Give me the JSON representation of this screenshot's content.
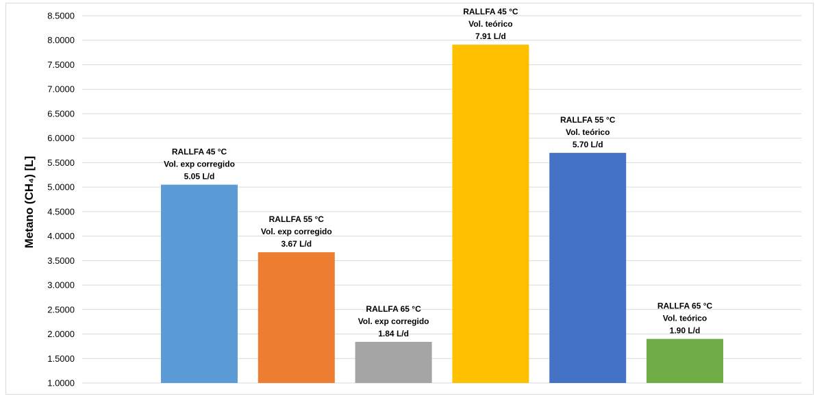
{
  "chart_data": {
    "type": "bar",
    "title": "",
    "xlabel": "",
    "ylabel": "Metano (CH₄) [L]",
    "ylim": [
      1.0,
      8.5
    ],
    "y_ticks": [
      "1.0000",
      "1.5000",
      "2.0000",
      "2.5000",
      "3.0000",
      "3.5000",
      "4.0000",
      "4.5000",
      "5.0000",
      "5.5000",
      "6.0000",
      "6.5000",
      "7.0000",
      "7.5000",
      "8.0000",
      "8.5000"
    ],
    "grid": true,
    "legend": "none",
    "bars": [
      {
        "value": 5.05,
        "color": "#5b9bd5",
        "label": [
          "RALLFA 45 °C",
          "Vol. exp corregido",
          "5.05 L/d"
        ]
      },
      {
        "value": 3.67,
        "color": "#ed7d31",
        "label": [
          "RALLFA 55 °C",
          "Vol. exp corregido",
          "3.67 L/d"
        ]
      },
      {
        "value": 1.84,
        "color": "#a5a5a5",
        "label": [
          "RALLFA 65 °C",
          "Vol. exp corregido",
          "1.84 L/d"
        ]
      },
      {
        "value": 7.91,
        "color": "#ffc000",
        "label": [
          "RALLFA 45 °C",
          "Vol. teórico",
          "7.91 L/d"
        ]
      },
      {
        "value": 5.7,
        "color": "#4472c4",
        "label": [
          "RALLFA 55 °C",
          "Vol. teórico",
          "5.70 L/d"
        ]
      },
      {
        "value": 1.9,
        "color": "#70ad47",
        "label": [
          "RALLFA 65 °C",
          "Vol. teórico",
          "1.90 L/d"
        ]
      }
    ]
  }
}
